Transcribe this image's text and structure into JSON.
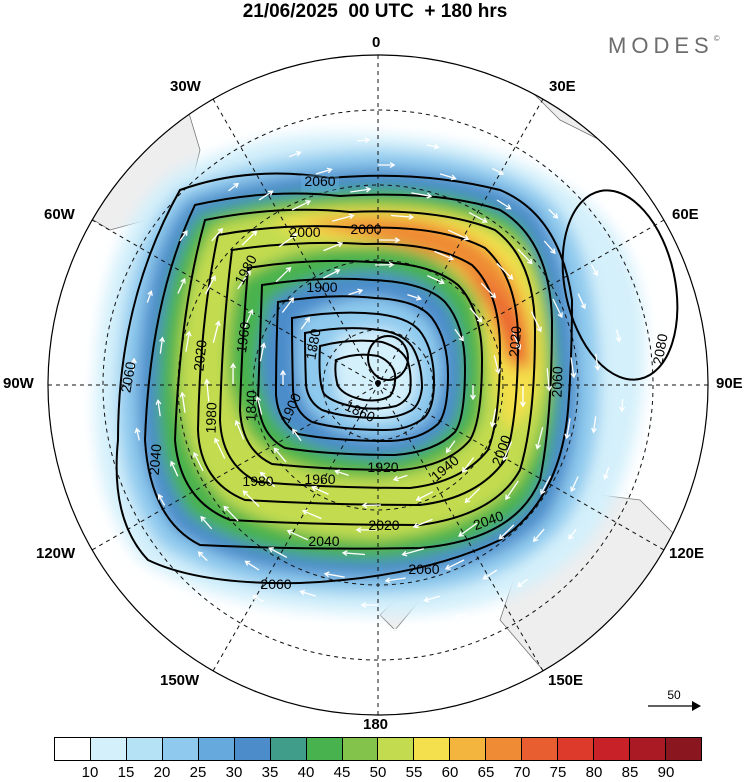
{
  "title": "21/06/2025  00 UTC  + 180 hrs",
  "brand": "MODES",
  "brand_mark": "©",
  "longitude_labels": {
    "top": "0",
    "n30e": "30E",
    "n60e": "60E",
    "e90": "90E",
    "n120e": "120E",
    "n150e": "150E",
    "bottom": "180",
    "n150w": "150W",
    "n120w": "120W",
    "w90": "90W",
    "n60w": "60W",
    "n30w": "30W"
  },
  "contour_labels": {
    "c2060_top": "2060",
    "c2000a": "2000",
    "c2000b": "2000",
    "c1980_nw": "1980",
    "c1900_n": "1900",
    "c1880": "1880",
    "c1960_w": "1960",
    "c2020_w": "2020",
    "c2060_w": "2060",
    "c2040_sw": "2040",
    "c1980_w": "1980",
    "c1840": "1840",
    "c1900_w": "1900",
    "c1860": "1860",
    "c2020_e": "2020",
    "c2060_e": "2060",
    "c2080": "2080",
    "c2000_e": "2000",
    "c1920": "1920",
    "c1940": "1940",
    "c1960_s": "1960",
    "c1980_s": "1980",
    "c2020_s": "2020",
    "c2040_s": "2040",
    "c2040_se": "2040",
    "c2060_s": "2060",
    "c2060_ss": "2060"
  },
  "reference_vector": {
    "value": "50"
  },
  "colorbar": {
    "colors": [
      "#ffffff",
      "#d4f0fb",
      "#b6e2f6",
      "#8fcaee",
      "#66a9dd",
      "#4c8ccb",
      "#3f9d8a",
      "#48b24e",
      "#83c34b",
      "#c3dc4f",
      "#f4e04c",
      "#f4b53f",
      "#ef8b35",
      "#e95e31",
      "#dd3a2b",
      "#c82128",
      "#a91a25",
      "#8a1620"
    ],
    "labels": [
      "10",
      "15",
      "20",
      "25",
      "30",
      "35",
      "40",
      "45",
      "50",
      "55",
      "60",
      "65",
      "70",
      "75",
      "80",
      "85",
      "90"
    ]
  }
}
